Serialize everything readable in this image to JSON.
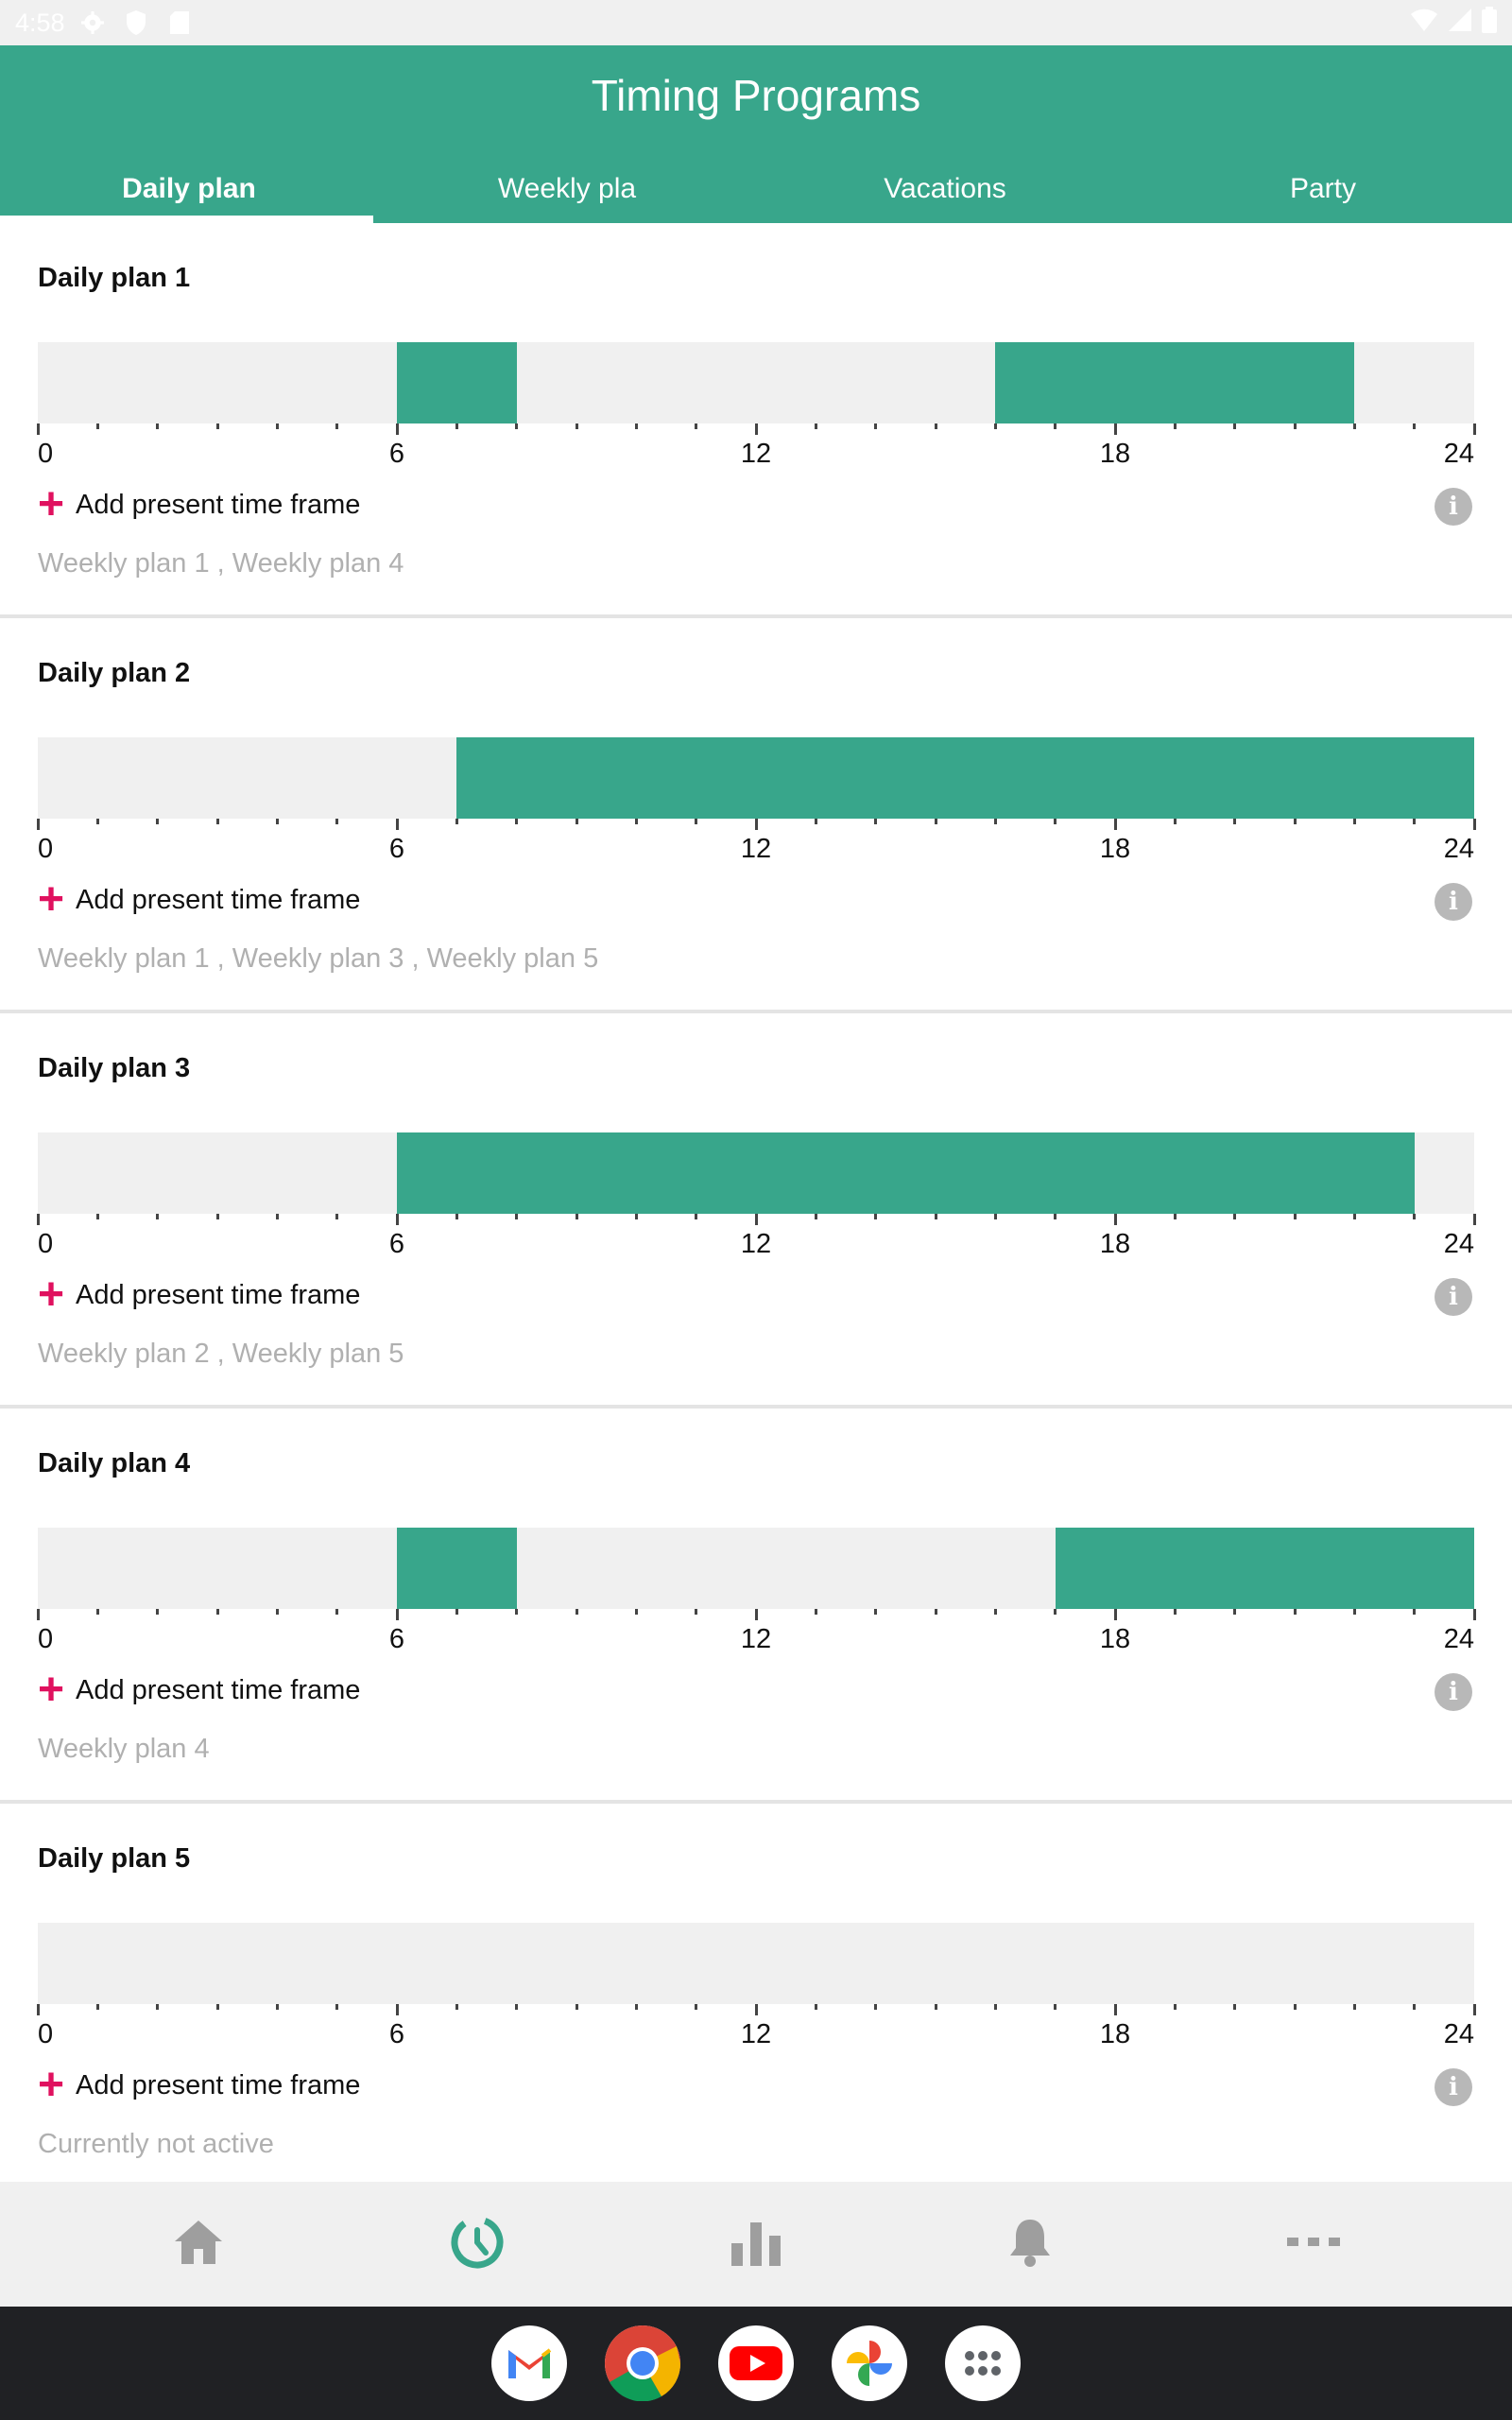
{
  "status_bar": {
    "time": "4:58"
  },
  "header": {
    "title": "Timing Programs"
  },
  "tabs": [
    {
      "label": "Daily plan",
      "active": true
    },
    {
      "label": "Weekly pla",
      "active": false
    },
    {
      "label": "Vacations",
      "active": false
    },
    {
      "label": "Party",
      "active": false
    }
  ],
  "colors": {
    "accent": "#38a68b",
    "add_plus": "#e0115f",
    "bar_bg": "#f0f0f0",
    "muted_text": "#b0b0b0"
  },
  "axis_labels": [
    "0",
    "6",
    "12",
    "18",
    "24"
  ],
  "add_label": "Add present time frame",
  "plans": [
    {
      "title": "Daily plan 1",
      "segments": [
        [
          6,
          8
        ],
        [
          16,
          22
        ]
      ],
      "usage": "Weekly plan 1 , Weekly plan 4"
    },
    {
      "title": "Daily plan 2",
      "segments": [
        [
          7,
          24
        ]
      ],
      "usage": "Weekly plan 1 , Weekly plan 3 , Weekly plan 5"
    },
    {
      "title": "Daily plan 3",
      "segments": [
        [
          6,
          23
        ]
      ],
      "usage": "Weekly plan 2 , Weekly plan 5"
    },
    {
      "title": "Daily plan 4",
      "segments": [
        [
          6,
          8
        ],
        [
          17,
          24
        ]
      ],
      "usage": "Weekly plan 4"
    },
    {
      "title": "Daily plan 5",
      "segments": [],
      "usage": "Currently not active"
    }
  ],
  "bottom_nav": [
    {
      "icon": "home-icon",
      "active": false
    },
    {
      "icon": "timer-icon",
      "active": true
    },
    {
      "icon": "bar-chart-icon",
      "active": false
    },
    {
      "icon": "bell-icon",
      "active": false
    },
    {
      "icon": "more-icon",
      "active": false
    }
  ],
  "dock_apps": [
    "gmail-icon",
    "chrome-icon",
    "youtube-icon",
    "photos-icon",
    "app-drawer-icon"
  ]
}
